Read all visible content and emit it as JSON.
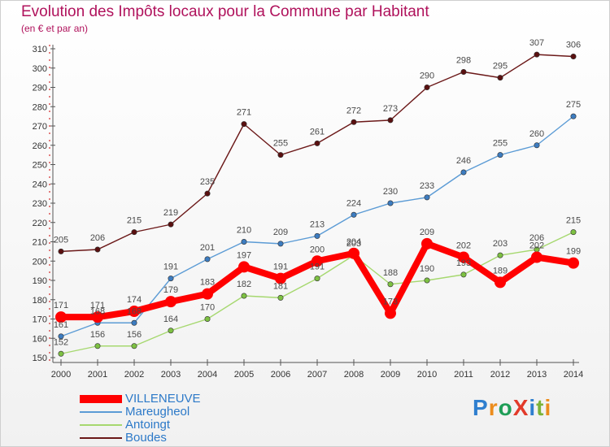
{
  "title": "Evolution des Impôts locaux pour la Commune par Habitant",
  "subtitle": "(en € et par an)",
  "brand": "ProXiti",
  "colors": {
    "title": "#b0125c",
    "axis": "#555555",
    "grid": "#cc0000",
    "legend_text": "#2c79c8",
    "brand_letters": [
      "#2f7fcf",
      "#ec8c1c",
      "#1f9e57",
      "#e23a2a",
      "#2f7fcf",
      "#7bb338",
      "#ec8c1c"
    ]
  },
  "chart_data": {
    "type": "line",
    "title": "Evolution des Impôts locaux pour la Commune par Habitant",
    "subtitle": "(en € et par an)",
    "xlabel": "",
    "ylabel": "",
    "x": [
      2000,
      2001,
      2002,
      2003,
      2004,
      2005,
      2006,
      2007,
      2008,
      2009,
      2010,
      2011,
      2012,
      2013,
      2014
    ],
    "ylim": [
      150,
      310
    ],
    "yticks": [
      150,
      160,
      170,
      180,
      190,
      200,
      210,
      220,
      230,
      240,
      250,
      260,
      270,
      280,
      290,
      300,
      310
    ],
    "grid": false,
    "legend_position": "bottom-left",
    "series": [
      {
        "name": "Boudes",
        "color": "#6b1818",
        "marker_color": "#5a1010",
        "emphasis": false,
        "values": [
          205,
          206,
          215,
          219,
          235,
          271,
          255,
          261,
          272,
          273,
          290,
          298,
          295,
          307,
          306
        ]
      },
      {
        "name": "Mareugheol",
        "color": "#5b9bd5",
        "marker_color": "#3d7cc0",
        "emphasis": false,
        "values": [
          161,
          168,
          168,
          191,
          201,
          210,
          209,
          213,
          224,
          230,
          233,
          246,
          255,
          260,
          275
        ]
      },
      {
        "name": "Antoingt",
        "color": "#a6d86f",
        "marker_color": "#7dc142",
        "emphasis": false,
        "values": [
          152,
          156,
          156,
          164,
          170,
          182,
          181,
          191,
          203,
          188,
          190,
          193,
          203,
          206,
          215
        ]
      },
      {
        "name": "VILLENEUVE",
        "color": "#ff0000",
        "marker_color": "#ff0000",
        "emphasis": true,
        "values": [
          171,
          171,
          174,
          179,
          183,
          197,
          191,
          200,
          204,
          173,
          209,
          202,
          189,
          202,
          199
        ]
      }
    ],
    "legend_order": [
      "VILLENEUVE",
      "Mareugheol",
      "Antoingt",
      "Boudes"
    ]
  }
}
